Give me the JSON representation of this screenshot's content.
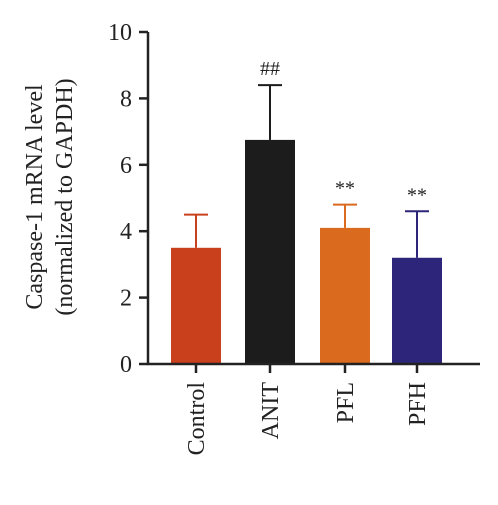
{
  "chart_data": {
    "type": "bar",
    "title": "",
    "xlabel": "",
    "ylabel_lines": [
      "Caspase-1 mRNA level",
      "(normalized to GAPDH)"
    ],
    "ylim": [
      0,
      10
    ],
    "yticks": [
      "0",
      "2",
      "4",
      "6",
      "8",
      "10"
    ],
    "categories": [
      "Control",
      "ANIT",
      "PFL",
      "PFH"
    ],
    "values": [
      3.5,
      6.75,
      4.1,
      3.2
    ],
    "errors": [
      1.0,
      1.65,
      0.7,
      1.4
    ],
    "annotations": [
      "",
      "##",
      "**",
      "**"
    ],
    "colors": [
      "#c9401d",
      "#1c1c1c",
      "#d96a1e",
      "#2d2579"
    ],
    "grid": false,
    "error_bar_direction": "up"
  }
}
